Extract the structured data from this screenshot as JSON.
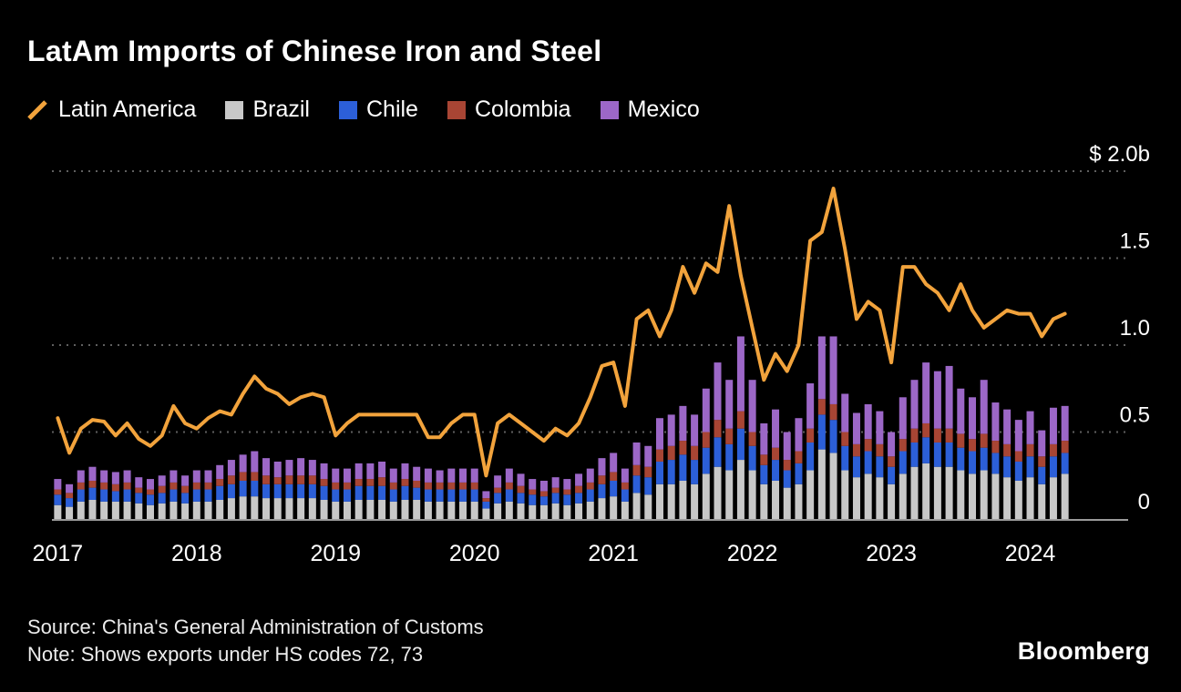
{
  "page": {
    "background": "#000000"
  },
  "header": {
    "title": "LatAm Imports of Chinese Iron and Steel"
  },
  "legend": {
    "items": [
      {
        "label": "Latin America",
        "color": "#F2A33C",
        "swatch": "line"
      },
      {
        "label": "Brazil",
        "color": "#C8C8C8",
        "swatch": "square"
      },
      {
        "label": "Chile",
        "color": "#2C5FD8",
        "swatch": "square"
      },
      {
        "label": "Colombia",
        "color": "#A84534",
        "swatch": "square"
      },
      {
        "label": "Mexico",
        "color": "#9C67C7",
        "swatch": "square"
      }
    ]
  },
  "footer": {
    "source": "Source: China's General Administration of Customs",
    "note": "Note: Shows exports under HS codes 72, 73",
    "brand": "Bloomberg"
  },
  "chart_data": {
    "type": "line+stacked-bar",
    "title": "LatAm Imports of Chinese Iron and Steel",
    "unit": "USD billions",
    "ylim": [
      0,
      2.0
    ],
    "grid": "horizontal-dotted",
    "legend_position": "top-left",
    "x": [
      "2017-01",
      "2017-02",
      "2017-03",
      "2017-04",
      "2017-05",
      "2017-06",
      "2017-07",
      "2017-08",
      "2017-09",
      "2017-10",
      "2017-11",
      "2017-12",
      "2018-01",
      "2018-02",
      "2018-03",
      "2018-04",
      "2018-05",
      "2018-06",
      "2018-07",
      "2018-08",
      "2018-09",
      "2018-10",
      "2018-11",
      "2018-12",
      "2019-01",
      "2019-02",
      "2019-03",
      "2019-04",
      "2019-05",
      "2019-06",
      "2019-07",
      "2019-08",
      "2019-09",
      "2019-10",
      "2019-11",
      "2019-12",
      "2020-01",
      "2020-02",
      "2020-03",
      "2020-04",
      "2020-05",
      "2020-06",
      "2020-07",
      "2020-08",
      "2020-09",
      "2020-10",
      "2020-11",
      "2020-12",
      "2021-01",
      "2021-02",
      "2021-03",
      "2021-04",
      "2021-05",
      "2021-06",
      "2021-07",
      "2021-08",
      "2021-09",
      "2021-10",
      "2021-11",
      "2021-12",
      "2022-01",
      "2022-02",
      "2022-03",
      "2022-04",
      "2022-05",
      "2022-06",
      "2022-07",
      "2022-08",
      "2022-09",
      "2022-10",
      "2022-11",
      "2022-12",
      "2023-01",
      "2023-02",
      "2023-03",
      "2023-04",
      "2023-05",
      "2023-06",
      "2023-07",
      "2023-08",
      "2023-09",
      "2023-10",
      "2023-11",
      "2023-12",
      "2024-01",
      "2024-02",
      "2024-03",
      "2024-04"
    ],
    "x_ticks": [
      {
        "index": 0,
        "label": "2017"
      },
      {
        "index": 12,
        "label": "2018"
      },
      {
        "index": 24,
        "label": "2019"
      },
      {
        "index": 36,
        "label": "2020"
      },
      {
        "index": 48,
        "label": "2021"
      },
      {
        "index": 60,
        "label": "2022"
      },
      {
        "index": 72,
        "label": "2023"
      },
      {
        "index": 84,
        "label": "2024"
      }
    ],
    "y_ticks": [
      {
        "value": 2.0,
        "label": "$ 2.0b"
      },
      {
        "value": 1.5,
        "label": "1.5"
      },
      {
        "value": 1.0,
        "label": "1.0"
      },
      {
        "value": 0.5,
        "label": "0.5"
      },
      {
        "value": 0,
        "label": "0"
      }
    ],
    "series": [
      {
        "name": "Latin America",
        "type": "line",
        "color": "#F2A33C",
        "values": [
          0.58,
          0.38,
          0.52,
          0.57,
          0.56,
          0.48,
          0.55,
          0.46,
          0.42,
          0.48,
          0.65,
          0.55,
          0.52,
          0.58,
          0.62,
          0.6,
          0.72,
          0.82,
          0.75,
          0.72,
          0.66,
          0.7,
          0.72,
          0.7,
          0.48,
          0.55,
          0.6,
          0.6,
          0.6,
          0.6,
          0.6,
          0.6,
          0.47,
          0.47,
          0.55,
          0.6,
          0.6,
          0.25,
          0.55,
          0.6,
          0.55,
          0.5,
          0.45,
          0.52,
          0.48,
          0.55,
          0.7,
          0.88,
          0.9,
          0.65,
          1.15,
          1.2,
          1.05,
          1.2,
          1.45,
          1.3,
          1.47,
          1.42,
          1.8,
          1.4,
          1.1,
          0.8,
          0.95,
          0.85,
          1.0,
          1.6,
          1.65,
          1.9,
          1.55,
          1.15,
          1.25,
          1.2,
          0.9,
          1.45,
          1.45,
          1.35,
          1.3,
          1.2,
          1.35,
          1.2,
          1.1,
          1.15,
          1.2,
          1.18,
          1.18,
          1.05,
          1.15,
          1.18
        ]
      },
      {
        "name": "Brazil",
        "type": "bar",
        "color": "#C8C8C8",
        "values": [
          0.08,
          0.07,
          0.1,
          0.11,
          0.1,
          0.1,
          0.1,
          0.09,
          0.08,
          0.09,
          0.1,
          0.09,
          0.1,
          0.1,
          0.11,
          0.12,
          0.13,
          0.13,
          0.12,
          0.12,
          0.12,
          0.12,
          0.12,
          0.11,
          0.1,
          0.1,
          0.11,
          0.11,
          0.11,
          0.1,
          0.11,
          0.11,
          0.1,
          0.1,
          0.1,
          0.1,
          0.1,
          0.06,
          0.09,
          0.1,
          0.09,
          0.08,
          0.08,
          0.09,
          0.08,
          0.09,
          0.1,
          0.12,
          0.13,
          0.1,
          0.15,
          0.14,
          0.2,
          0.2,
          0.22,
          0.2,
          0.26,
          0.3,
          0.28,
          0.34,
          0.28,
          0.2,
          0.22,
          0.18,
          0.2,
          0.28,
          0.4,
          0.38,
          0.28,
          0.24,
          0.26,
          0.24,
          0.2,
          0.26,
          0.3,
          0.32,
          0.3,
          0.3,
          0.28,
          0.26,
          0.28,
          0.26,
          0.24,
          0.22,
          0.24,
          0.2,
          0.24,
          0.26
        ]
      },
      {
        "name": "Chile",
        "type": "bar",
        "color": "#2C5FD8",
        "values": [
          0.06,
          0.05,
          0.07,
          0.07,
          0.07,
          0.06,
          0.07,
          0.06,
          0.06,
          0.06,
          0.07,
          0.06,
          0.07,
          0.07,
          0.08,
          0.08,
          0.09,
          0.09,
          0.08,
          0.08,
          0.08,
          0.08,
          0.08,
          0.08,
          0.07,
          0.07,
          0.08,
          0.08,
          0.08,
          0.07,
          0.08,
          0.07,
          0.07,
          0.07,
          0.07,
          0.07,
          0.07,
          0.04,
          0.06,
          0.07,
          0.06,
          0.06,
          0.05,
          0.06,
          0.06,
          0.06,
          0.07,
          0.08,
          0.09,
          0.07,
          0.1,
          0.1,
          0.13,
          0.14,
          0.15,
          0.14,
          0.15,
          0.17,
          0.15,
          0.18,
          0.14,
          0.11,
          0.12,
          0.1,
          0.12,
          0.16,
          0.2,
          0.19,
          0.14,
          0.12,
          0.13,
          0.12,
          0.1,
          0.13,
          0.14,
          0.15,
          0.14,
          0.14,
          0.13,
          0.13,
          0.13,
          0.12,
          0.12,
          0.11,
          0.12,
          0.1,
          0.12,
          0.12
        ]
      },
      {
        "name": "Colombia",
        "type": "bar",
        "color": "#A84534",
        "values": [
          0.03,
          0.03,
          0.04,
          0.04,
          0.04,
          0.04,
          0.04,
          0.03,
          0.03,
          0.04,
          0.04,
          0.04,
          0.04,
          0.04,
          0.04,
          0.05,
          0.05,
          0.05,
          0.05,
          0.04,
          0.05,
          0.05,
          0.05,
          0.04,
          0.04,
          0.04,
          0.04,
          0.04,
          0.05,
          0.04,
          0.04,
          0.04,
          0.04,
          0.04,
          0.04,
          0.04,
          0.04,
          0.02,
          0.03,
          0.04,
          0.04,
          0.03,
          0.03,
          0.03,
          0.03,
          0.04,
          0.04,
          0.05,
          0.05,
          0.04,
          0.06,
          0.06,
          0.07,
          0.08,
          0.08,
          0.08,
          0.09,
          0.1,
          0.09,
          0.1,
          0.08,
          0.06,
          0.07,
          0.06,
          0.07,
          0.08,
          0.09,
          0.09,
          0.08,
          0.07,
          0.07,
          0.07,
          0.06,
          0.07,
          0.08,
          0.08,
          0.08,
          0.08,
          0.08,
          0.07,
          0.08,
          0.07,
          0.07,
          0.06,
          0.07,
          0.06,
          0.07,
          0.07
        ]
      },
      {
        "name": "Mexico",
        "type": "bar",
        "color": "#9C67C7",
        "values": [
          0.06,
          0.05,
          0.07,
          0.08,
          0.07,
          0.07,
          0.07,
          0.06,
          0.06,
          0.06,
          0.07,
          0.06,
          0.07,
          0.07,
          0.08,
          0.09,
          0.1,
          0.12,
          0.1,
          0.09,
          0.09,
          0.1,
          0.09,
          0.09,
          0.08,
          0.08,
          0.09,
          0.09,
          0.09,
          0.08,
          0.09,
          0.08,
          0.08,
          0.07,
          0.08,
          0.08,
          0.08,
          0.04,
          0.07,
          0.08,
          0.07,
          0.06,
          0.06,
          0.06,
          0.06,
          0.07,
          0.08,
          0.1,
          0.11,
          0.08,
          0.13,
          0.12,
          0.18,
          0.18,
          0.2,
          0.18,
          0.25,
          0.33,
          0.28,
          0.43,
          0.3,
          0.18,
          0.22,
          0.16,
          0.19,
          0.26,
          0.36,
          0.39,
          0.22,
          0.18,
          0.2,
          0.19,
          0.14,
          0.24,
          0.28,
          0.35,
          0.33,
          0.36,
          0.26,
          0.24,
          0.31,
          0.22,
          0.2,
          0.18,
          0.19,
          0.15,
          0.21,
          0.2
        ]
      }
    ]
  }
}
